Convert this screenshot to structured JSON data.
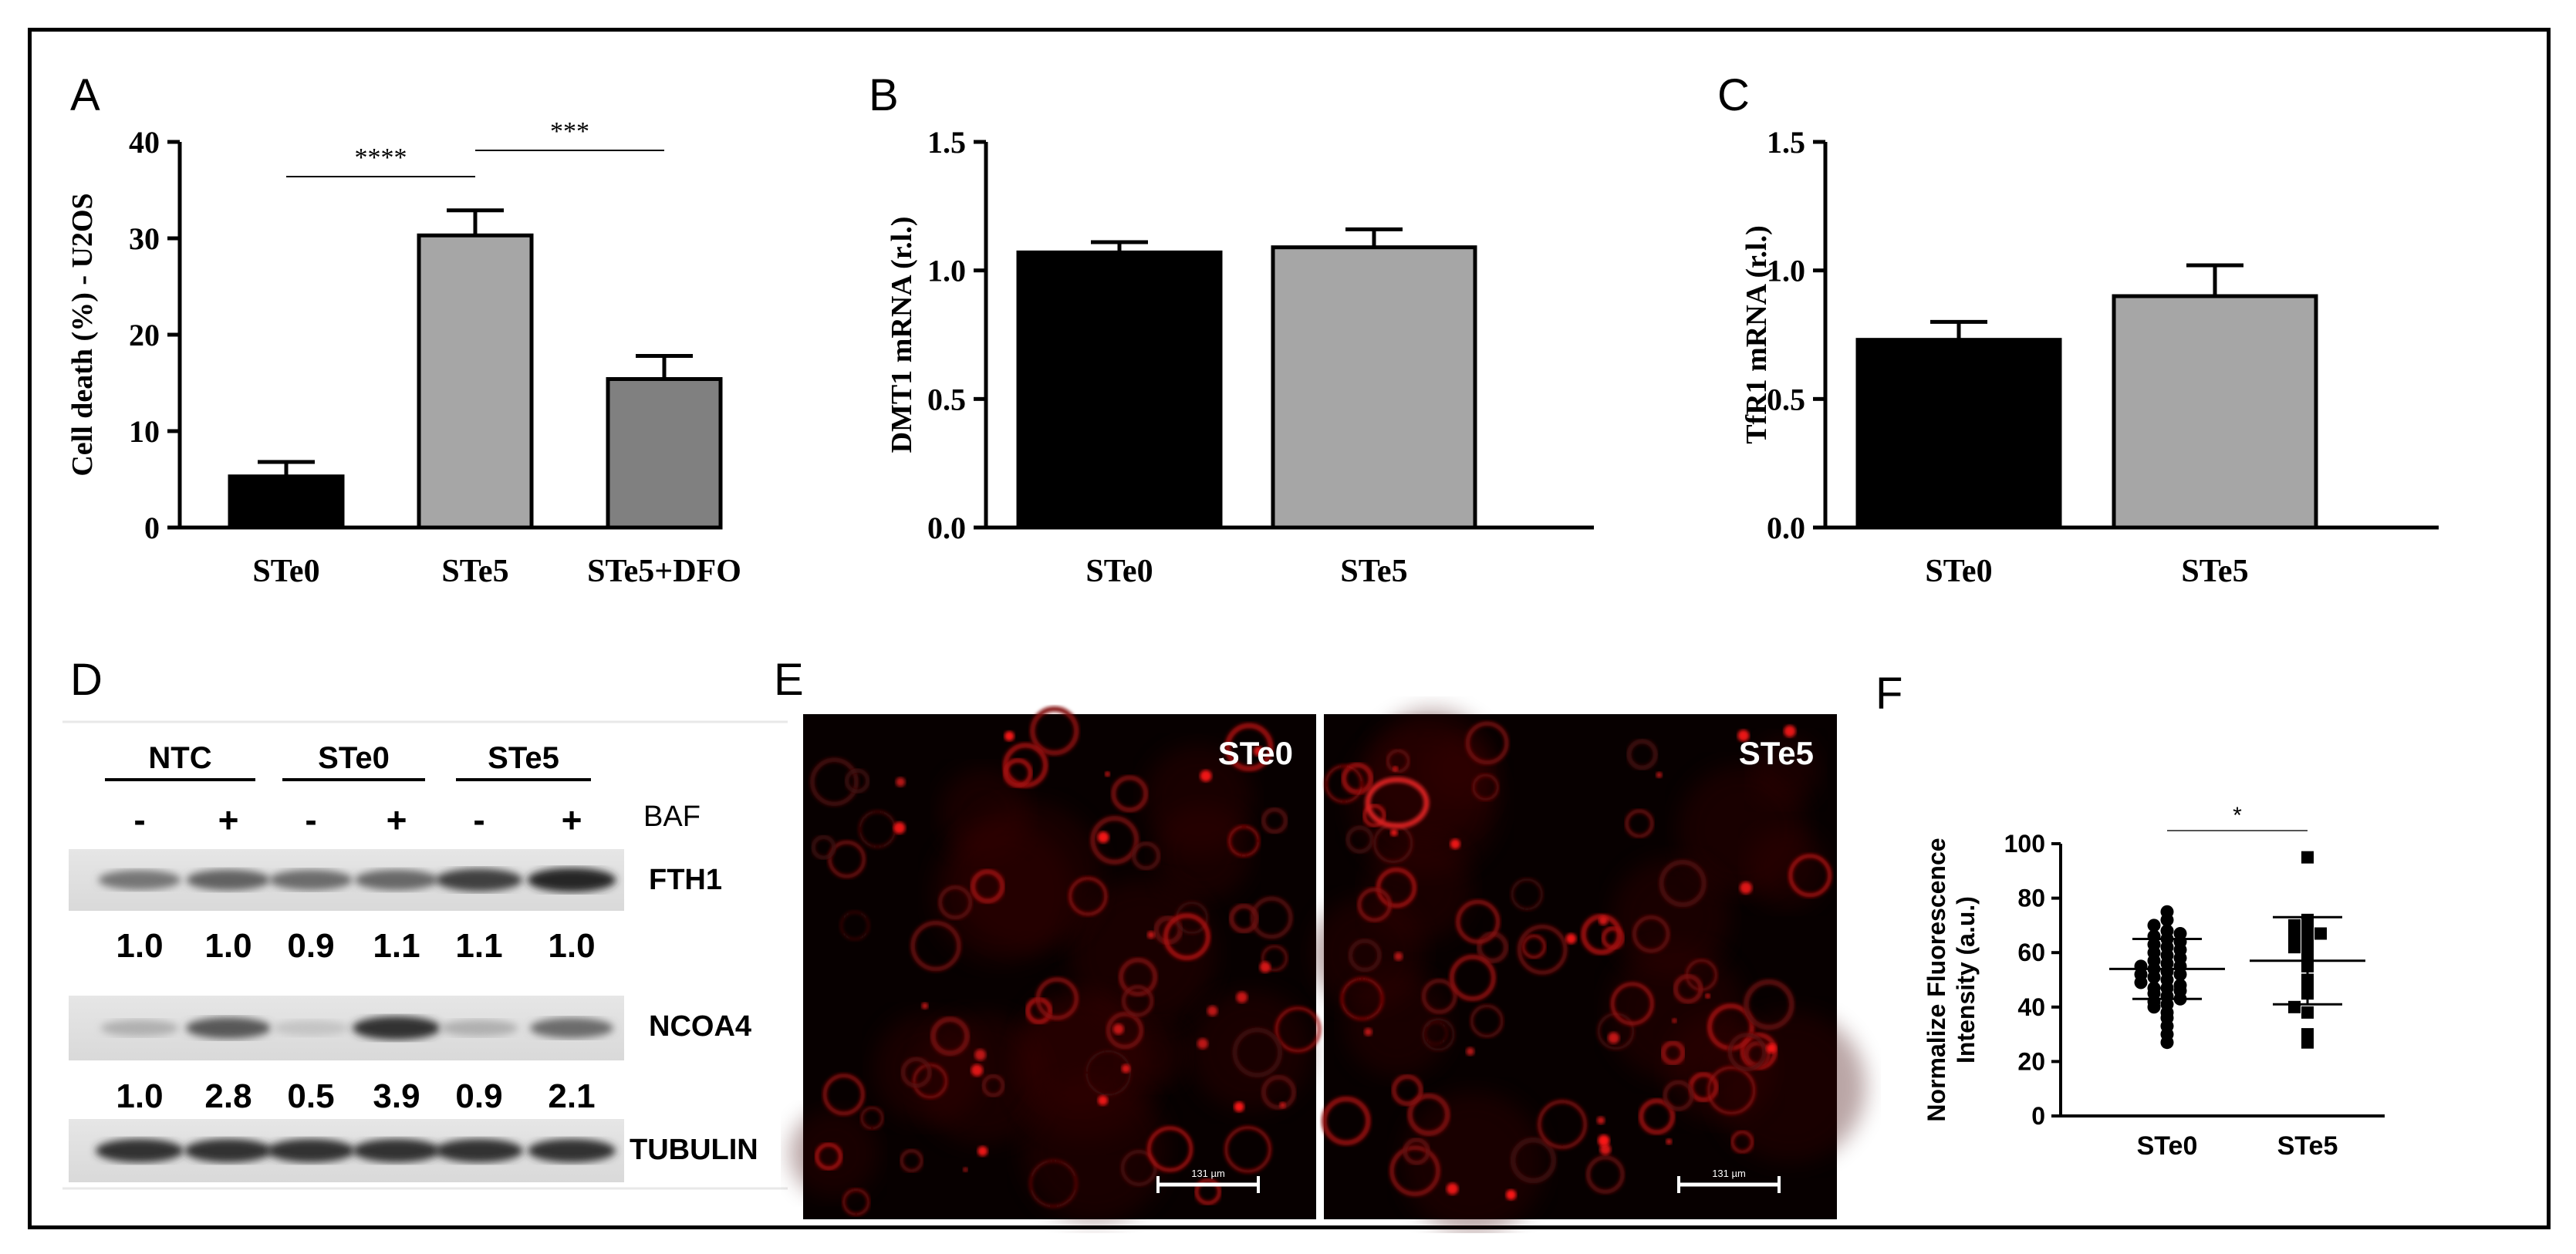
{
  "chart_data": [
    {
      "panel": "A",
      "type": "bar",
      "categories": [
        "STe0",
        "STe5",
        "STe5+DFO"
      ],
      "values": [
        5.3,
        30.3,
        15.4
      ],
      "errors": [
        1.5,
        2.6,
        2.4
      ],
      "colors": [
        "#000000",
        "#a6a6a6",
        "#808080"
      ],
      "ylabel": "Cell death (%) - U2OS",
      "ylim": [
        0,
        40
      ],
      "yticks": [
        "0",
        "10",
        "20",
        "30",
        "40"
      ],
      "significance": [
        {
          "from": 0,
          "to": 1,
          "label": "****"
        },
        {
          "from": 1,
          "to": 2,
          "label": "***"
        }
      ]
    },
    {
      "panel": "B",
      "type": "bar",
      "categories": [
        "STe0",
        "STe5"
      ],
      "values": [
        1.07,
        1.09
      ],
      "errors": [
        0.04,
        0.07
      ],
      "colors": [
        "#000000",
        "#a6a6a6"
      ],
      "ylabel": "DMT1 mRNA (r.l.)",
      "ylim": [
        0,
        1.5
      ],
      "yticks": [
        "0.0",
        "0.5",
        "1.0",
        "1.5"
      ]
    },
    {
      "panel": "C",
      "type": "bar",
      "categories": [
        "STe0",
        "STe5"
      ],
      "values": [
        0.73,
        0.9
      ],
      "errors": [
        0.07,
        0.12
      ],
      "colors": [
        "#000000",
        "#a6a6a6"
      ],
      "ylabel": "TfR1 mRNA (r.l.)",
      "ylim": [
        0,
        1.5
      ],
      "yticks": [
        "0.0",
        "0.5",
        "1.0",
        "1.5"
      ]
    },
    {
      "panel": "F",
      "type": "scatter",
      "categories": [
        "STe0",
        "STe5"
      ],
      "means": [
        54,
        57
      ],
      "sd": [
        11,
        16
      ],
      "ylabel": "Normalize Fluorescence Intensity (a.u.)",
      "ylabel_lines": [
        "Normalize Fluorescence",
        "Intensity (a.u.)"
      ],
      "ylim": [
        0,
        100
      ],
      "yticks": [
        "0",
        "20",
        "40",
        "60",
        "80",
        "100"
      ],
      "significance": [
        {
          "from": 0,
          "to": 1,
          "label": "*"
        }
      ],
      "points": [
        [
          27,
          30,
          33,
          36,
          38,
          40,
          41,
          42,
          43,
          44,
          45,
          46,
          47,
          47,
          48,
          49,
          50,
          51,
          52,
          52,
          53,
          54,
          55,
          55,
          56,
          57,
          58,
          59,
          60,
          61,
          62,
          63,
          64,
          65,
          66,
          67,
          68,
          70,
          72,
          75
        ],
        [
          27,
          30,
          38,
          40,
          45,
          48,
          50,
          55,
          58,
          60,
          62,
          62,
          65,
          66,
          67,
          68,
          70,
          72,
          95
        ]
      ]
    }
  ],
  "panel_letters": {
    "a": "A",
    "b": "B",
    "c": "C",
    "d": "D",
    "e": "E",
    "f": "F"
  },
  "western": {
    "groups": [
      {
        "label": "NTC"
      },
      {
        "label": "STe0"
      },
      {
        "label": "STe5"
      }
    ],
    "baf_signs": [
      "-",
      "+",
      "-",
      "+",
      "-",
      "+"
    ],
    "baf_label": "BAF",
    "rows": [
      {
        "label": "FTH1",
        "quant": [
          "1.0",
          "1.0",
          "0.9",
          "1.1",
          "1.1",
          "1.0"
        ],
        "intensity": [
          0.55,
          0.65,
          0.6,
          0.62,
          0.82,
          0.95
        ]
      },
      {
        "label": "NCOA4",
        "quant": [
          "1.0",
          "2.8",
          "0.5",
          "3.9",
          "0.9",
          "2.1"
        ],
        "intensity": [
          0.25,
          0.7,
          0.15,
          0.9,
          0.25,
          0.6
        ]
      },
      {
        "label": "TUBULIN",
        "quant": [],
        "intensity": [
          0.9,
          0.9,
          0.9,
          0.9,
          0.9,
          0.9
        ]
      }
    ]
  },
  "micrographs": [
    {
      "label": "STe0",
      "scalebar": "131 µm"
    },
    {
      "label": "STe5",
      "scalebar": "131 µm"
    }
  ]
}
